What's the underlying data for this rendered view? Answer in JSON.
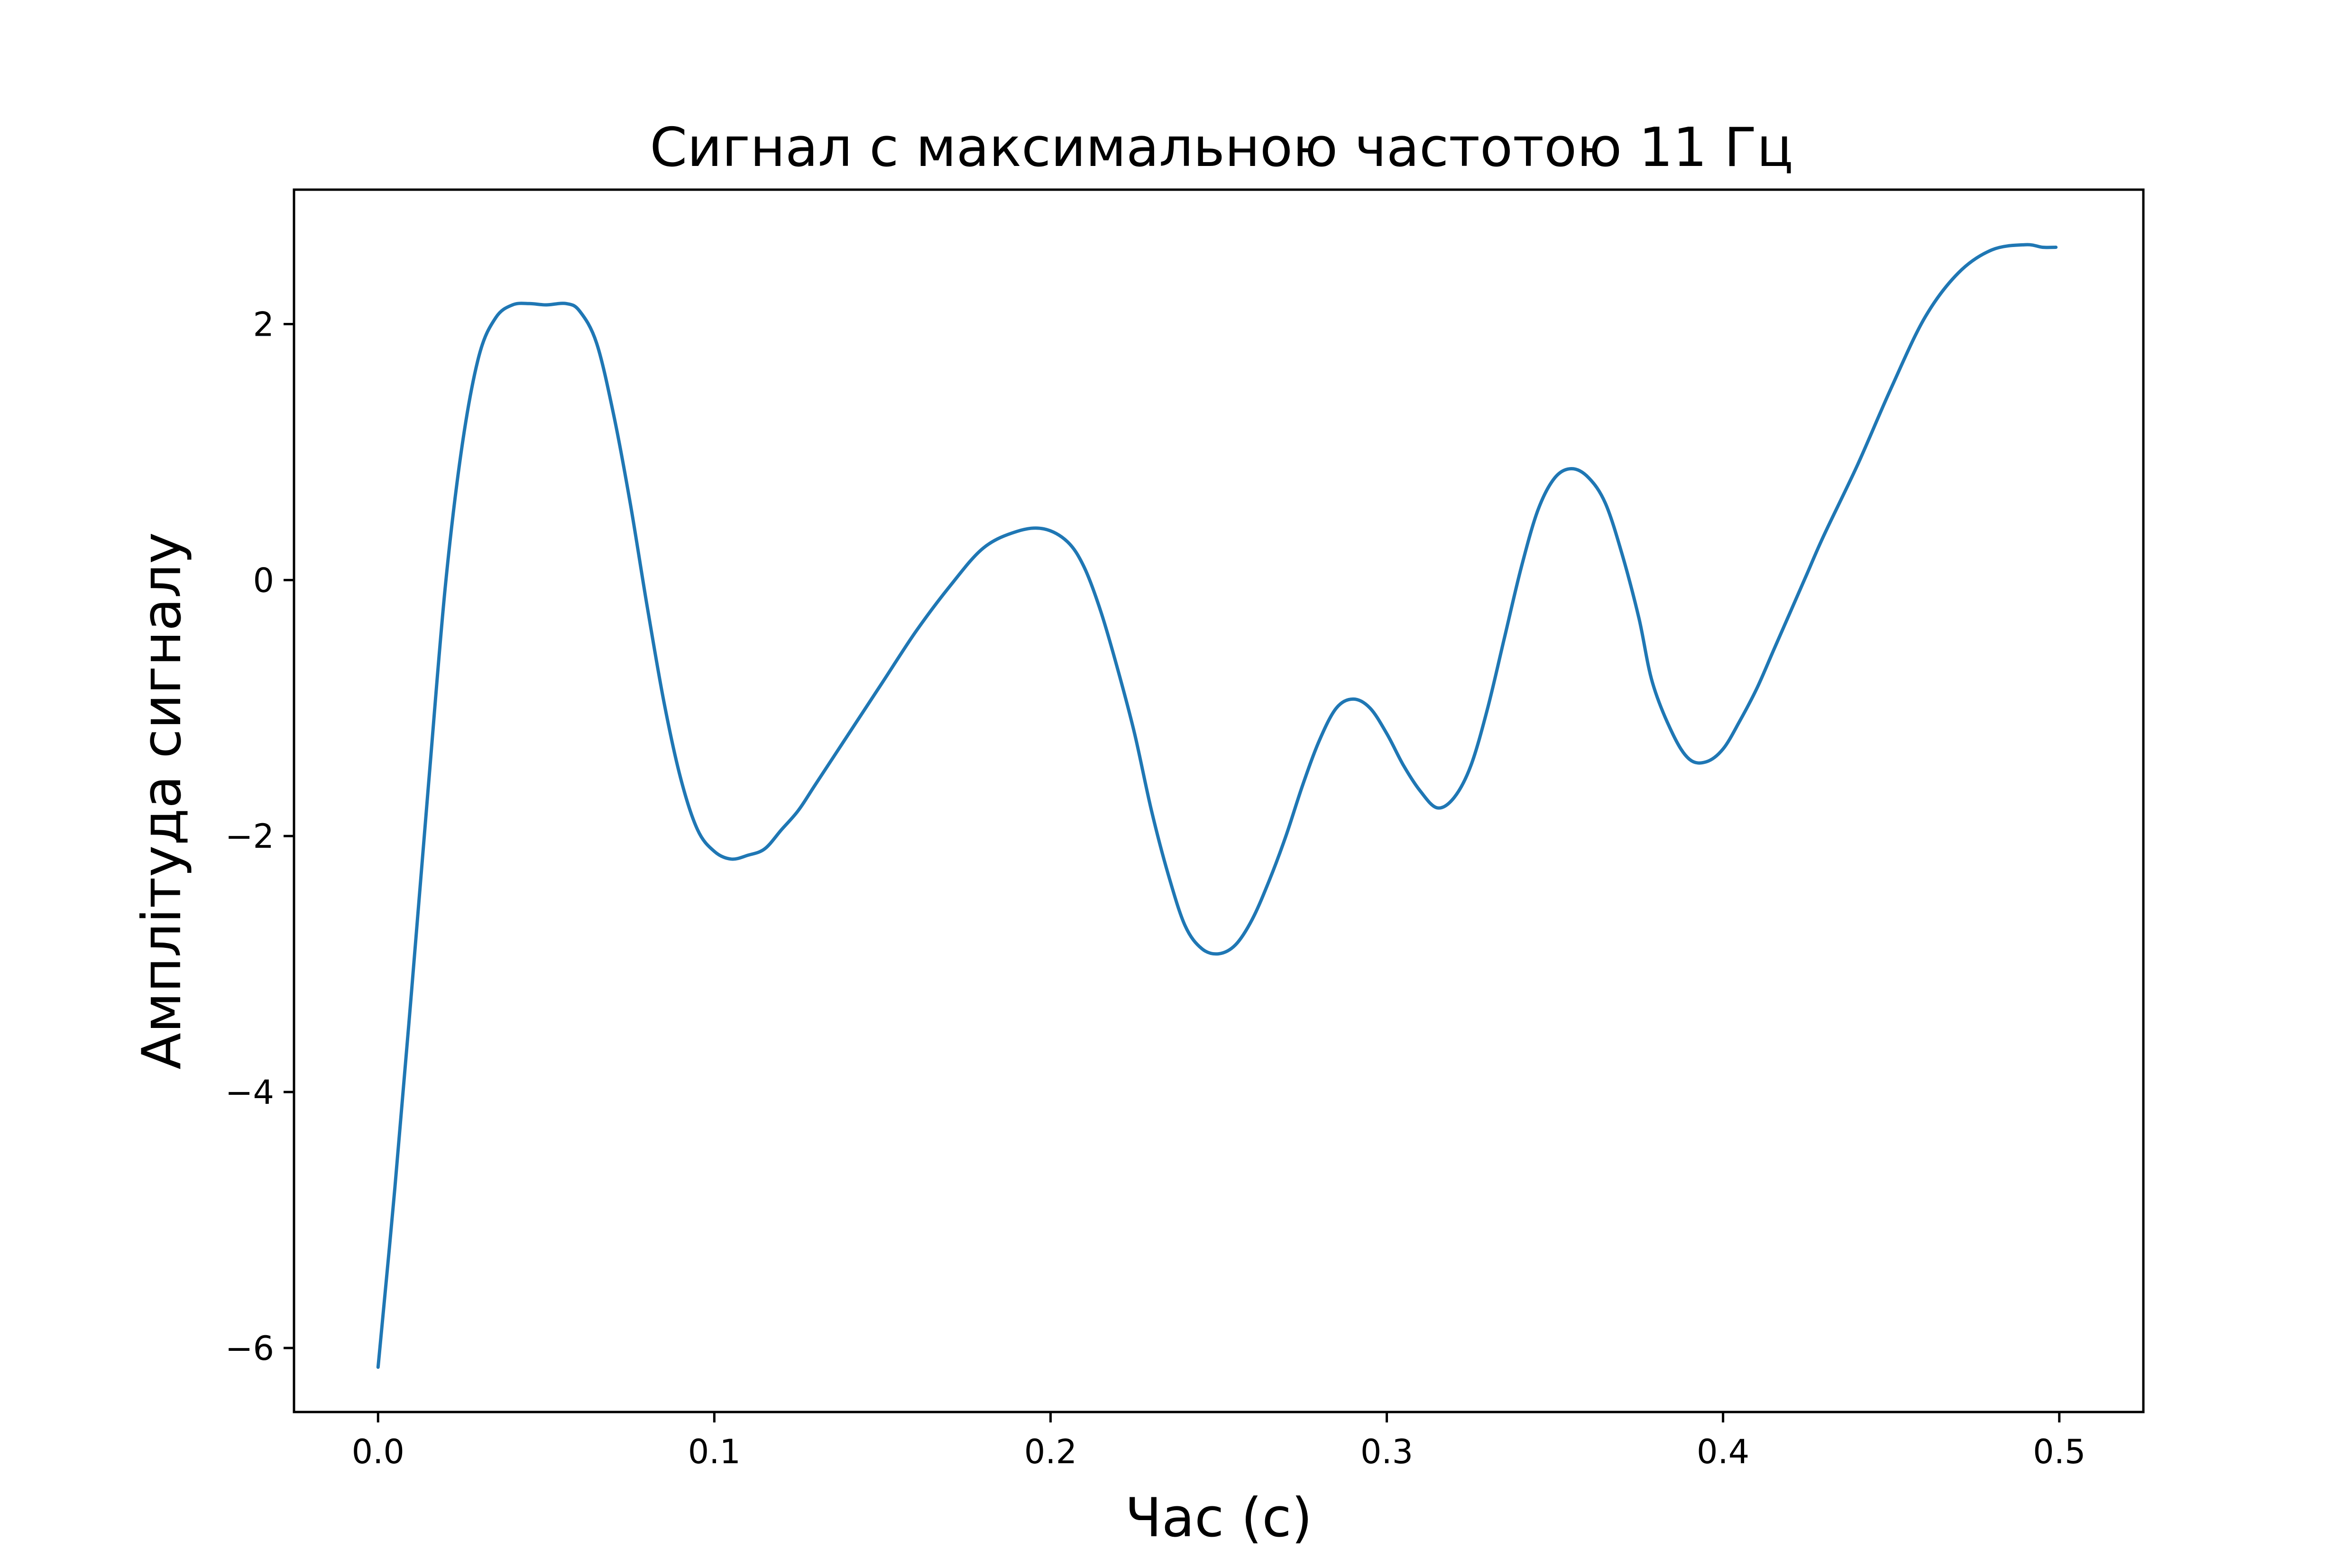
{
  "chart_data": {
    "type": "line",
    "title": "Сигнал с максимальною частотою 11 Гц",
    "xlabel": "Час (с)",
    "ylabel": "Амплітуда сигналу",
    "xlim": [
      -0.025,
      0.525
    ],
    "ylim": [
      -6.5,
      3.05
    ],
    "grid": false,
    "xticks": [
      0.0,
      0.1,
      0.2,
      0.3,
      0.4,
      0.5
    ],
    "xtick_labels": [
      "0.0",
      "0.1",
      "0.2",
      "0.3",
      "0.4",
      "0.5"
    ],
    "yticks": [
      -6,
      -4,
      -2,
      0,
      2
    ],
    "ytick_labels": [
      "−6",
      "−4",
      "−2",
      "0",
      "2"
    ],
    "line_color": "#1f77b4",
    "series": [
      {
        "x": [
          0.0,
          0.005,
          0.01,
          0.015,
          0.02,
          0.025,
          0.03,
          0.035,
          0.04,
          0.045,
          0.05,
          0.056,
          0.06,
          0.065,
          0.07,
          0.075,
          0.08,
          0.085,
          0.09,
          0.095,
          0.1,
          0.105,
          0.11,
          0.115,
          0.12,
          0.125,
          0.13,
          0.14,
          0.15,
          0.16,
          0.17,
          0.18,
          0.19,
          0.198,
          0.205,
          0.21,
          0.215,
          0.22,
          0.225,
          0.23,
          0.235,
          0.24,
          0.245,
          0.25,
          0.255,
          0.26,
          0.265,
          0.27,
          0.275,
          0.28,
          0.285,
          0.29,
          0.295,
          0.3,
          0.305,
          0.31,
          0.315,
          0.32,
          0.325,
          0.33,
          0.335,
          0.34,
          0.345,
          0.35,
          0.355,
          0.36,
          0.365,
          0.37,
          0.375,
          0.379,
          0.385,
          0.39,
          0.395,
          0.4,
          0.405,
          0.41,
          0.415,
          0.42,
          0.425,
          0.43,
          0.44,
          0.45,
          0.46,
          0.47,
          0.48,
          0.49,
          0.495,
          0.499
        ],
        "y": [
          -6.15,
          -4.75,
          -3.2,
          -1.6,
          -0.05,
          1.05,
          1.75,
          2.05,
          2.15,
          2.16,
          2.15,
          2.16,
          2.1,
          1.85,
          1.3,
          0.6,
          -0.2,
          -0.95,
          -1.55,
          -1.95,
          -2.12,
          -2.18,
          -2.15,
          -2.1,
          -1.95,
          -1.8,
          -1.6,
          -1.2,
          -0.8,
          -0.4,
          -0.05,
          0.25,
          0.38,
          0.4,
          0.3,
          0.1,
          -0.25,
          -0.7,
          -1.2,
          -1.8,
          -2.3,
          -2.7,
          -2.88,
          -2.92,
          -2.85,
          -2.65,
          -2.35,
          -2.0,
          -1.6,
          -1.25,
          -1.0,
          -0.93,
          -1.0,
          -1.2,
          -1.45,
          -1.65,
          -1.78,
          -1.7,
          -1.45,
          -1.0,
          -0.45,
          0.1,
          0.55,
          0.8,
          0.87,
          0.8,
          0.6,
          0.2,
          -0.3,
          -0.8,
          -1.2,
          -1.4,
          -1.42,
          -1.32,
          -1.1,
          -0.85,
          -0.55,
          -0.25,
          0.05,
          0.35,
          0.9,
          1.5,
          2.05,
          2.4,
          2.58,
          2.62,
          2.6,
          2.6
        ]
      }
    ]
  }
}
